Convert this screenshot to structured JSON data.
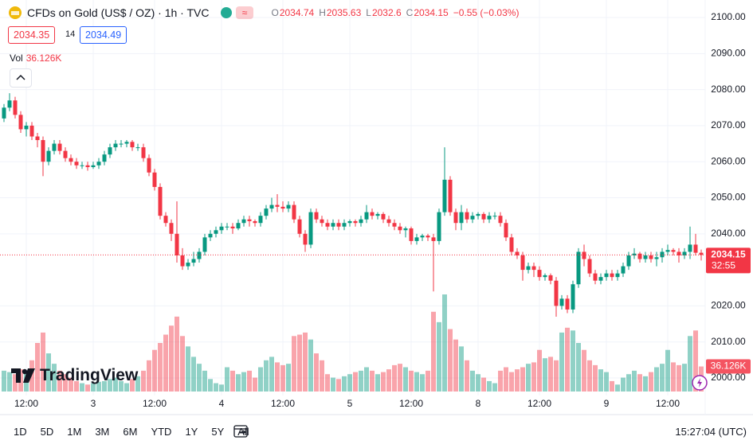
{
  "header": {
    "symbol": "CFDs on Gold (US$ / OZ) · 1h · TVC",
    "ohlc_letters": [
      "O",
      "H",
      "L",
      "C"
    ],
    "change": "−0.55 (−0.03%)",
    "bid": 2034.35,
    "spread": 14,
    "ask": 2034.49,
    "vol": "Vol"
  },
  "chart_data": {
    "type": "candlestick",
    "categories": [
      null,
      null,
      null,
      null,
      "12:00",
      null,
      null,
      null,
      null,
      null,
      null,
      null,
      null,
      null,
      null,
      null,
      "3",
      null,
      null,
      null,
      null,
      null,
      null,
      null,
      null,
      null,
      null,
      "12:00",
      null,
      null,
      null,
      null,
      null,
      null,
      null,
      null,
      null,
      null,
      null,
      "4",
      null,
      null,
      null,
      null,
      null,
      null,
      null,
      null,
      null,
      null,
      "12:00",
      null,
      null,
      null,
      null,
      null,
      null,
      null,
      null,
      null,
      null,
      null,
      "5",
      null,
      null,
      null,
      null,
      null,
      null,
      null,
      null,
      null,
      null,
      "12:00",
      null,
      null,
      null,
      null,
      null,
      null,
      null,
      null,
      null,
      null,
      null,
      "8",
      null,
      null,
      null,
      null,
      null,
      null,
      null,
      null,
      null,
      null,
      "12:00",
      null,
      null,
      null,
      null,
      null,
      null,
      null,
      null,
      null,
      null,
      null,
      "9",
      null,
      null,
      null,
      null,
      null,
      null,
      null,
      null,
      null,
      null,
      "12:00",
      null,
      null,
      null,
      null,
      null,
      null
    ],
    "open": [
      2072,
      2075,
      2077,
      2073,
      2069,
      2070,
      2067,
      2066,
      2060,
      2063,
      2065,
      2063,
      2061,
      2060,
      2059,
      2059,
      2058.5,
      2059,
      2060,
      2062,
      2064,
      2065,
      2065,
      2065.5,
      2064,
      2064,
      2061,
      2057,
      2053,
      2045,
      2043,
      2040,
      2034,
      2031,
      2032,
      2033,
      2035,
      2039,
      2040,
      2041,
      2042,
      2042,
      2041.5,
      2043,
      2044,
      2043.5,
      2043,
      2045,
      2047,
      2048,
      2047.5,
      2047,
      2048,
      2044,
      2040,
      2037,
      2046,
      2044,
      2043,
      2042,
      2043,
      2042,
      2043,
      2043.5,
      2043,
      2044,
      2046,
      2045,
      2045.5,
      2044,
      2043,
      2042,
      2041,
      2041.5,
      2038,
      2039,
      2039.5,
      2039,
      2038,
      2046,
      2055,
      2046,
      2043,
      2046,
      2044,
      2045,
      2045.5,
      2044,
      2045,
      2045,
      2043,
      2039,
      2035,
      2034,
      2030,
      2031,
      2030,
      2028,
      2028.5,
      2027,
      2020,
      2022,
      2019,
      2026,
      2035,
      2033,
      2029,
      2027,
      2028,
      2029,
      2028,
      2029,
      2031,
      2034,
      2034.5,
      2033,
      2034,
      2033,
      2033.5,
      2035,
      2035.5,
      2035,
      2034,
      2035,
      2037,
      2034.74
    ],
    "high": [
      2076,
      2079,
      2078,
      2074,
      2071,
      2071,
      2068,
      2067,
      2064,
      2066,
      2066,
      2064,
      2062,
      2061,
      2060,
      2060,
      2060,
      2061,
      2063,
      2065,
      2066,
      2066,
      2066,
      2066,
      2065,
      2065,
      2062,
      2058,
      2054,
      2046,
      2044,
      2049,
      2036,
      2033,
      2035,
      2036,
      2040,
      2041,
      2042,
      2043,
      2043,
      2043,
      2044,
      2045,
      2045,
      2044,
      2046,
      2048,
      2050,
      2051,
      2049,
      2049,
      2049,
      2045,
      2041,
      2047,
      2047,
      2045,
      2044,
      2044,
      2044,
      2044,
      2044,
      2044,
      2045,
      2048,
      2047,
      2046,
      2046,
      2045,
      2044,
      2043,
      2042,
      2042,
      2040,
      2040,
      2040,
      2040,
      2047,
      2064,
      2056,
      2047,
      2048,
      2047,
      2046,
      2046,
      2046,
      2046,
      2046,
      2046,
      2044,
      2040,
      2036,
      2035,
      2032,
      2032,
      2031,
      2029,
      2029,
      2028,
      2023,
      2023,
      2027,
      2036,
      2037,
      2034,
      2030,
      2029,
      2030,
      2030,
      2030,
      2032,
      2035,
      2036,
      2035,
      2035,
      2035,
      2035,
      2036,
      2037,
      2036,
      2036,
      2036,
      2042,
      2040,
      2035.63
    ],
    "low": [
      2071,
      2074,
      2072,
      2068,
      2067,
      2066,
      2064,
      2056,
      2059,
      2062,
      2062,
      2060,
      2059,
      2058,
      2058,
      2057.5,
      2058,
      2058,
      2059,
      2061,
      2063,
      2064,
      2064,
      2063,
      2063,
      2060,
      2056,
      2052,
      2044,
      2042,
      2038,
      2032,
      2030,
      2030,
      2031,
      2032,
      2034,
      2038,
      2039,
      2040,
      2041,
      2040,
      2041,
      2042,
      2042,
      2042,
      2042,
      2044,
      2046,
      2046,
      2046,
      2046,
      2043,
      2039,
      2035,
      2036,
      2043,
      2042,
      2041,
      2041,
      2041,
      2041,
      2042,
      2042,
      2042,
      2043,
      2044,
      2044,
      2043,
      2042,
      2041,
      2040,
      2039,
      2037,
      2037,
      2038,
      2038,
      2024,
      2037,
      2045,
      2045,
      2041,
      2041,
      2043,
      2043,
      2044,
      2043,
      2043,
      2044,
      2042,
      2038,
      2034,
      2033,
      2027,
      2029,
      2028,
      2027,
      2027,
      2026,
      2017,
      2019,
      2018,
      2018,
      2025,
      2031,
      2028,
      2026,
      2026,
      2027,
      2027,
      2027,
      2028,
      2030,
      2033,
      2032,
      2032,
      2032,
      2031,
      2032,
      2034,
      2034,
      2032,
      2033,
      2033,
      2034,
      2032.6
    ],
    "close": [
      2075,
      2077,
      2073,
      2069,
      2070,
      2067,
      2066,
      2060,
      2063,
      2065,
      2063,
      2061,
      2060,
      2059,
      2059,
      2058.5,
      2059,
      2060,
      2062,
      2064,
      2065,
      2065,
      2065.5,
      2064,
      2064,
      2061,
      2057,
      2053,
      2045,
      2043,
      2040,
      2034,
      2031,
      2032,
      2033,
      2035,
      2039,
      2040,
      2041,
      2042,
      2042,
      2041.5,
      2043,
      2044,
      2043.5,
      2043,
      2045,
      2047,
      2048,
      2047.5,
      2047,
      2048,
      2044,
      2040,
      2037,
      2046,
      2044,
      2043,
      2042,
      2043,
      2042,
      2043,
      2043.5,
      2043,
      2044,
      2046,
      2045,
      2045.5,
      2044,
      2043,
      2042,
      2041,
      2041.5,
      2038,
      2039,
      2039.5,
      2039,
      2038,
      2046,
      2055,
      2046,
      2043,
      2046,
      2044,
      2045,
      2045.5,
      2044,
      2045,
      2045,
      2043,
      2039,
      2035,
      2034,
      2030,
      2031,
      2030,
      2028,
      2028.5,
      2027,
      2020,
      2022,
      2019,
      2026,
      2035,
      2033,
      2029,
      2027,
      2028,
      2029,
      2028,
      2029,
      2031,
      2034,
      2034.5,
      2033,
      2034,
      2033,
      2033.5,
      2035,
      2035.5,
      2035,
      2034,
      2035,
      2037,
      2034.74,
      2034.15
    ],
    "volume": [
      30,
      28,
      25,
      32,
      30,
      45,
      70,
      85,
      55,
      40,
      30,
      25,
      20,
      15,
      12,
      10,
      12,
      14,
      15,
      18,
      20,
      15,
      12,
      18,
      22,
      30,
      45,
      60,
      70,
      82,
      95,
      108,
      80,
      65,
      50,
      40,
      30,
      18,
      12,
      10,
      35,
      30,
      25,
      28,
      30,
      20,
      35,
      45,
      50,
      42,
      38,
      40,
      80,
      82,
      85,
      75,
      55,
      45,
      25,
      20,
      18,
      22,
      25,
      28,
      30,
      35,
      30,
      25,
      28,
      32,
      38,
      40,
      35,
      30,
      28,
      25,
      30,
      115,
      100,
      140,
      90,
      75,
      65,
      45,
      30,
      25,
      20,
      15,
      12,
      30,
      35,
      28,
      32,
      35,
      40,
      42,
      60,
      48,
      50,
      45,
      85,
      92,
      88,
      70,
      60,
      45,
      38,
      32,
      28,
      15,
      10,
      20,
      25,
      30,
      25,
      22,
      28,
      35,
      40,
      60,
      42,
      38,
      40,
      80,
      88,
      36.126
    ],
    "volume_value_label": "36.126K",
    "up_color": "#089981",
    "down_color": "#f23645",
    "ylim": [
      1996.25,
      2104.86
    ],
    "yticks": [
      {
        "value": 2000,
        "label": "2000.00"
      },
      {
        "value": 2010,
        "label": "2010.00"
      },
      {
        "value": 2020,
        "label": "2020.00"
      },
      {
        "value": 2040,
        "label": "2040.00"
      },
      {
        "value": 2050,
        "label": "2050.00"
      },
      {
        "value": 2060,
        "label": "2060.00"
      },
      {
        "value": 2070,
        "label": "2070.00"
      },
      {
        "value": 2080,
        "label": "2080.00"
      },
      {
        "value": 2090,
        "label": "2090.00"
      },
      {
        "value": 2100,
        "label": "2100.00"
      }
    ],
    "grid": true,
    "countdown": "32:55"
  },
  "logo": "TradingView",
  "toolbar": {
    "ranges": [
      "1D",
      "5D",
      "1M",
      "3M",
      "6M",
      "YTD",
      "1Y",
      "5Y",
      "All"
    ],
    "clock": "15:27:04 (UTC)"
  }
}
